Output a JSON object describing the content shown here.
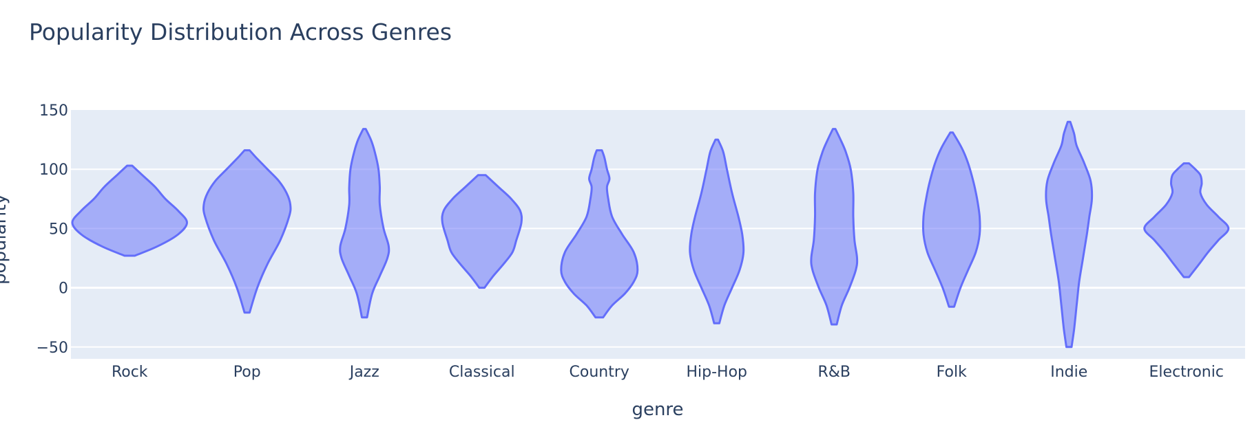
{
  "chart_data": {
    "type": "violin",
    "title": "Popularity Distribution Across Genres",
    "xlabel": "genre",
    "ylabel": "popularity",
    "ylim": [
      -60,
      150
    ],
    "yticks": [
      -50,
      0,
      50,
      100,
      150
    ],
    "ytick_labels": [
      "−50",
      "0",
      "50",
      "100",
      "150"
    ],
    "grid": true,
    "categories": [
      "Rock",
      "Pop",
      "Jazz",
      "Classical",
      "Country",
      "Hip-Hop",
      "R&B",
      "Folk",
      "Indie",
      "Electronic"
    ],
    "violins": [
      {
        "genre": "Rock",
        "min": 27,
        "max": 103,
        "profile": [
          [
            27,
            4
          ],
          [
            35,
            22
          ],
          [
            45,
            38
          ],
          [
            55,
            45
          ],
          [
            65,
            38
          ],
          [
            75,
            28
          ],
          [
            85,
            20
          ],
          [
            95,
            10
          ],
          [
            103,
            2
          ]
        ]
      },
      {
        "genre": "Pop",
        "min": -21,
        "max": 116,
        "profile": [
          [
            -21,
            2
          ],
          [
            0,
            8
          ],
          [
            20,
            16
          ],
          [
            40,
            26
          ],
          [
            60,
            33
          ],
          [
            70,
            34
          ],
          [
            80,
            31
          ],
          [
            90,
            25
          ],
          [
            100,
            16
          ],
          [
            110,
            7
          ],
          [
            116,
            2
          ]
        ]
      },
      {
        "genre": "Jazz",
        "min": -25,
        "max": 134,
        "profile": [
          [
            -25,
            2
          ],
          [
            -5,
            6
          ],
          [
            10,
            12
          ],
          [
            25,
            18
          ],
          [
            35,
            19
          ],
          [
            50,
            15
          ],
          [
            70,
            12
          ],
          [
            85,
            12
          ],
          [
            100,
            11
          ],
          [
            115,
            8
          ],
          [
            125,
            5
          ],
          [
            134,
            1
          ]
        ]
      },
      {
        "genre": "Classical",
        "min": 0,
        "max": 95,
        "profile": [
          [
            0,
            2
          ],
          [
            10,
            9
          ],
          [
            20,
            17
          ],
          [
            30,
            24
          ],
          [
            40,
            27
          ],
          [
            55,
            31
          ],
          [
            65,
            30
          ],
          [
            75,
            23
          ],
          [
            85,
            13
          ],
          [
            95,
            3
          ]
        ]
      },
      {
        "genre": "Country",
        "min": -25,
        "max": 116,
        "profile": [
          [
            -25,
            3
          ],
          [
            -15,
            10
          ],
          [
            -5,
            20
          ],
          [
            5,
            27
          ],
          [
            15,
            30
          ],
          [
            30,
            27
          ],
          [
            45,
            18
          ],
          [
            60,
            10
          ],
          [
            75,
            7
          ],
          [
            85,
            6
          ],
          [
            92,
            8
          ],
          [
            100,
            6
          ],
          [
            110,
            4
          ],
          [
            116,
            2
          ]
        ]
      },
      {
        "genre": "Hip-Hop",
        "min": -30,
        "max": 125,
        "profile": [
          [
            -30,
            2
          ],
          [
            -15,
            6
          ],
          [
            0,
            12
          ],
          [
            15,
            18
          ],
          [
            30,
            21
          ],
          [
            45,
            20
          ],
          [
            60,
            17
          ],
          [
            80,
            12
          ],
          [
            100,
            8
          ],
          [
            115,
            5
          ],
          [
            125,
            1
          ]
        ]
      },
      {
        "genre": "R&B",
        "min": -31,
        "max": 134,
        "profile": [
          [
            -31,
            2
          ],
          [
            -15,
            6
          ],
          [
            0,
            12
          ],
          [
            15,
            17
          ],
          [
            25,
            18
          ],
          [
            40,
            16
          ],
          [
            60,
            15
          ],
          [
            80,
            15
          ],
          [
            100,
            13
          ],
          [
            115,
            9
          ],
          [
            125,
            5
          ],
          [
            134,
            1
          ]
        ]
      },
      {
        "genre": "Folk",
        "min": -16,
        "max": 131,
        "profile": [
          [
            -16,
            2
          ],
          [
            0,
            7
          ],
          [
            15,
            13
          ],
          [
            30,
            19
          ],
          [
            45,
            22
          ],
          [
            60,
            22
          ],
          [
            75,
            20
          ],
          [
            90,
            17
          ],
          [
            105,
            13
          ],
          [
            118,
            8
          ],
          [
            131,
            1
          ]
        ]
      },
      {
        "genre": "Indie",
        "min": -50,
        "max": 140,
        "profile": [
          [
            -50,
            2
          ],
          [
            -35,
            4
          ],
          [
            -15,
            6
          ],
          [
            5,
            8
          ],
          [
            25,
            11
          ],
          [
            45,
            14
          ],
          [
            60,
            16
          ],
          [
            75,
            18
          ],
          [
            90,
            17
          ],
          [
            105,
            12
          ],
          [
            120,
            6
          ],
          [
            130,
            4
          ],
          [
            140,
            1
          ]
        ]
      },
      {
        "genre": "Electronic",
        "min": 9,
        "max": 105,
        "profile": [
          [
            9,
            2
          ],
          [
            20,
            10
          ],
          [
            30,
            17
          ],
          [
            40,
            25
          ],
          [
            50,
            33
          ],
          [
            60,
            25
          ],
          [
            70,
            16
          ],
          [
            80,
            11
          ],
          [
            88,
            12
          ],
          [
            95,
            11
          ],
          [
            100,
            7
          ],
          [
            105,
            2
          ]
        ]
      }
    ]
  }
}
